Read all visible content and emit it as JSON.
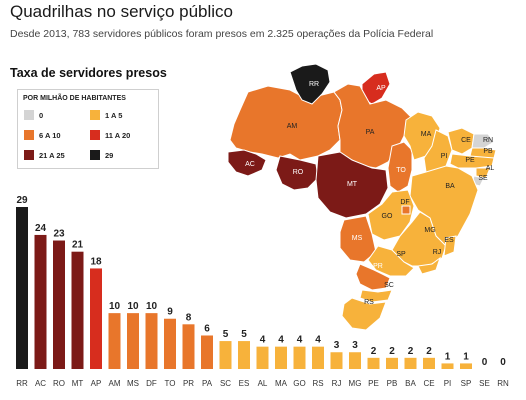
{
  "header": {
    "title": "Quadrilhas no serviço público",
    "subtitle": "Desde 2013, 783 servidores públicos foram presos em 2.325 operações da Polícia Federal"
  },
  "section_title": "Taxa de servidores presos",
  "legend": {
    "heading": "POR MILHÃO DE HABITANTES",
    "items": [
      {
        "label": "0",
        "color": "#d4d4d4"
      },
      {
        "label": "1 A 5",
        "color": "#f7b23b"
      },
      {
        "label": "6 A 10",
        "color": "#e8762b"
      },
      {
        "label": "11 A 20",
        "color": "#d72d1e"
      },
      {
        "label": "21 A 25",
        "color": "#7c1a17"
      },
      {
        "label": "29",
        "color": "#1a1a1a"
      }
    ]
  },
  "map_labels": [
    "RR",
    "AP",
    "AM",
    "PA",
    "MA",
    "CE",
    "RN",
    "PB",
    "PE",
    "AL",
    "SE",
    "PI",
    "BA",
    "AC",
    "RO",
    "MT",
    "TO",
    "GO",
    "DF",
    "MG",
    "ES",
    "MS",
    "SP",
    "RJ",
    "PR",
    "SC",
    "RS"
  ],
  "chart_data": {
    "type": "bar",
    "title": "Taxa de servidores presos",
    "categories": [
      "RR",
      "AC",
      "RO",
      "MT",
      "AP",
      "AM",
      "MS",
      "DF",
      "TO",
      "PR",
      "PA",
      "SC",
      "ES",
      "AL",
      "MA",
      "GO",
      "RS",
      "RJ",
      "MG",
      "PE",
      "PB",
      "BA",
      "CE",
      "PI",
      "SP",
      "SE",
      "RN"
    ],
    "values": [
      29,
      24,
      23,
      21,
      18,
      10,
      10,
      10,
      9,
      8,
      6,
      5,
      5,
      4,
      4,
      4,
      4,
      3,
      3,
      2,
      2,
      2,
      2,
      1,
      1,
      0,
      0
    ],
    "colors": [
      "#1a1a1a",
      "#7c1a17",
      "#7c1a17",
      "#7c1a17",
      "#d72d1e",
      "#e8762b",
      "#e8762b",
      "#e8762b",
      "#e8762b",
      "#e8762b",
      "#e8762b",
      "#f7b23b",
      "#f7b23b",
      "#f7b23b",
      "#f7b23b",
      "#f7b23b",
      "#f7b23b",
      "#f7b23b",
      "#f7b23b",
      "#f7b23b",
      "#f7b23b",
      "#f7b23b",
      "#f7b23b",
      "#f7b23b",
      "#f7b23b",
      "#d4d4d4",
      "#d4d4d4"
    ],
    "ylim": [
      0,
      29
    ],
    "grid": false,
    "legend_position": "top-left"
  }
}
